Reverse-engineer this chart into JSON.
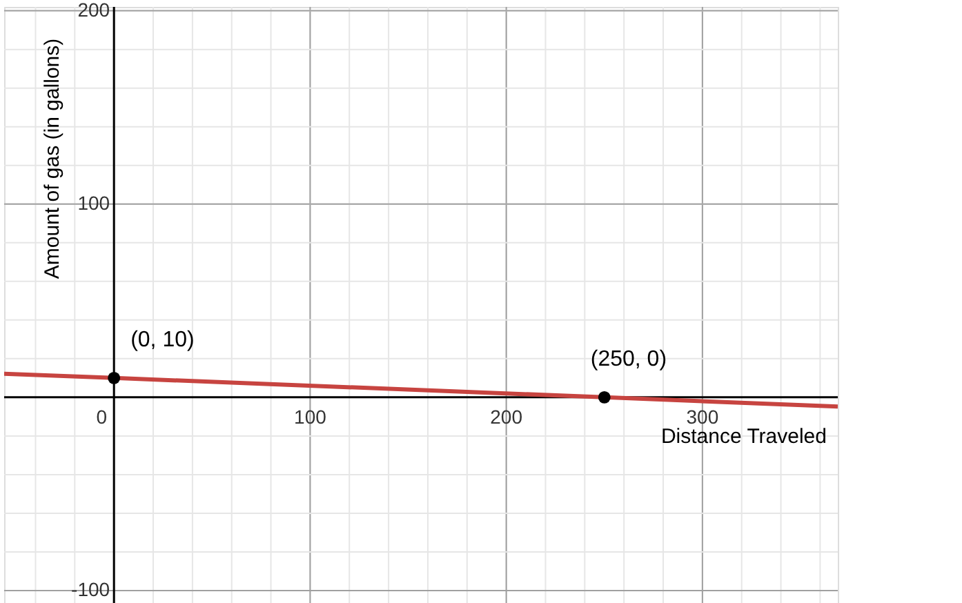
{
  "chart_data": {
    "type": "scatter",
    "xlabel": "Distance Traveled",
    "ylabel": "Amount of gas (in gallons)",
    "xlim": [
      -56,
      369
    ],
    "ylim": [
      -110,
      202
    ],
    "xticks": [
      0,
      100,
      200,
      300
    ],
    "yticks": [
      -100,
      100,
      200
    ],
    "grid": true,
    "marker": "none",
    "line_style": "solid",
    "series": [
      {
        "type": "line",
        "color": "#c74440",
        "x": [
          -56,
          0,
          250,
          369
        ],
        "values": [
          12.2,
          10,
          0,
          -4.8
        ]
      },
      {
        "color": "#000000",
        "marker": "circle",
        "x": [
          0,
          250
        ],
        "values": [
          10,
          0
        ]
      }
    ],
    "annotations": [
      {
        "text": "(0, 10)",
        "x": 0,
        "y": 10
      },
      {
        "text": "(250, 0)",
        "x": 250,
        "y": 0
      }
    ]
  }
}
